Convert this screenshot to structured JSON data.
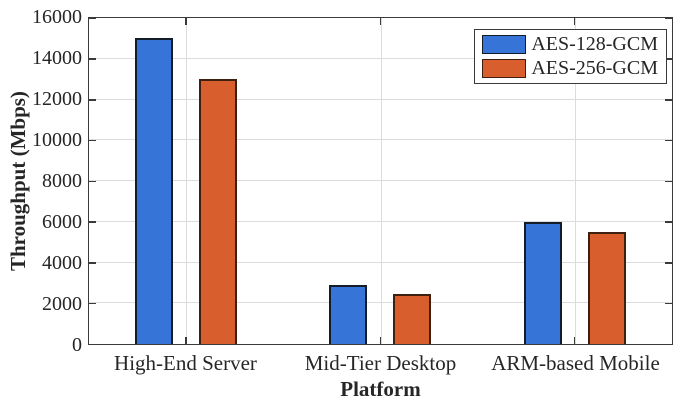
{
  "chart_data": {
    "type": "bar",
    "title": "",
    "xlabel": "Platform",
    "ylabel": "Throughput (Mbps)",
    "categories": [
      "High-End Server",
      "Mid-Tier Desktop",
      "ARM-based Mobile"
    ],
    "series": [
      {
        "name": "AES-128-GCM",
        "color": "#3674d8",
        "edge_color": "#131c29",
        "values": [
          15000,
          2900,
          6000
        ]
      },
      {
        "name": "AES-256-GCM",
        "color": "#d85e2e",
        "edge_color": "#3f2010",
        "values": [
          13000,
          2450,
          5500
        ]
      }
    ],
    "ylim": [
      0,
      16000
    ],
    "yticks": [
      0,
      2000,
      4000,
      6000,
      8000,
      10000,
      12000,
      14000,
      16000
    ],
    "grid": true,
    "grid_color": "#dcdcdc",
    "axis_color": "#3a3a3a",
    "text_color": "#262626",
    "background": "#ffffff",
    "legend_position": "top-right"
  }
}
